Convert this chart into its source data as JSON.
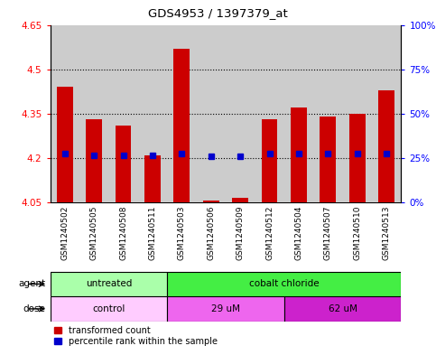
{
  "title": "GDS4953 / 1397379_at",
  "samples": [
    "GSM1240502",
    "GSM1240505",
    "GSM1240508",
    "GSM1240511",
    "GSM1240503",
    "GSM1240506",
    "GSM1240509",
    "GSM1240512",
    "GSM1240504",
    "GSM1240507",
    "GSM1240510",
    "GSM1240513"
  ],
  "bar_base": 4.05,
  "bar_tops": [
    4.44,
    4.33,
    4.31,
    4.21,
    4.57,
    4.055,
    4.065,
    4.33,
    4.37,
    4.34,
    4.35,
    4.43
  ],
  "percentile_values": [
    4.215,
    4.21,
    4.21,
    4.21,
    4.215,
    4.205,
    4.205,
    4.215,
    4.215,
    4.215,
    4.215,
    4.215
  ],
  "ylim_min": 4.05,
  "ylim_max": 4.65,
  "yticks_left": [
    4.05,
    4.2,
    4.35,
    4.5,
    4.65
  ],
  "ytick_left_labels": [
    "4.05",
    "4.2",
    "4.35",
    "4.5",
    "4.65"
  ],
  "yticks_right_vals": [
    0,
    25,
    50,
    75,
    100
  ],
  "ytick_right_labels": [
    "0%",
    "25%",
    "50%",
    "75%",
    "100%"
  ],
  "hgrid_at": [
    4.2,
    4.35,
    4.5
  ],
  "bar_color": "#cc0000",
  "percentile_color": "#0000cc",
  "sample_bg_color": "#cccccc",
  "agent_untreated_color": "#aaffaa",
  "agent_cobalt_color": "#44ee44",
  "dose_control_color": "#ffccff",
  "dose_29_color": "#ee66ee",
  "dose_62_color": "#cc22cc",
  "agent_row_label": "agent",
  "dose_row_label": "dose",
  "agent_untreated_label": "untreated",
  "agent_cobalt_label": "cobalt chloride",
  "dose_control_label": "control",
  "dose_29_label": "29 uM",
  "dose_62_label": "62 uM",
  "legend_red_label": "transformed count",
  "legend_blue_label": "percentile rank within the sample",
  "bar_width": 0.55,
  "n_untreated": 4,
  "n_cobalt": 8,
  "n_control": 4,
  "n_29um": 4,
  "n_62um": 4,
  "total_samples": 12
}
